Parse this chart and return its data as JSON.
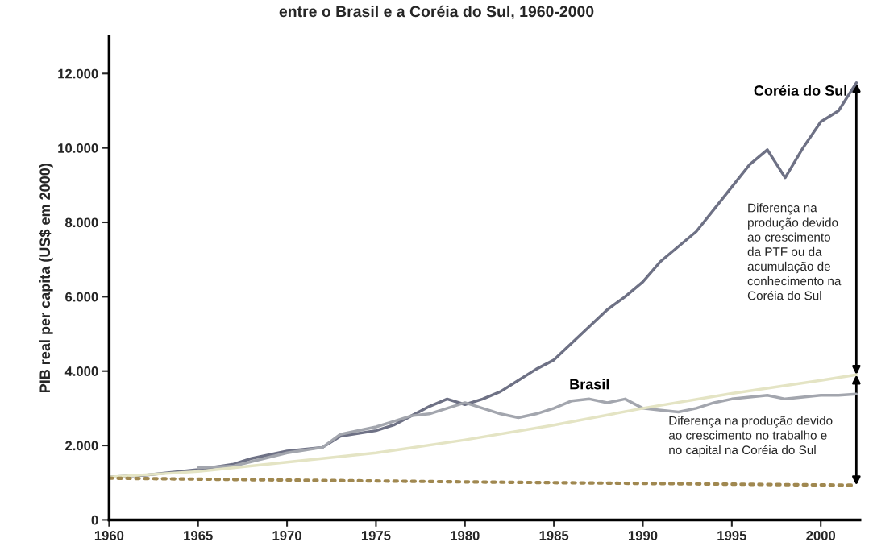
{
  "chart_data": {
    "type": "line",
    "title": "entre o Brasil e a Coréia do Sul, 1960-2000",
    "ylabel": "PIB real per capita (US$ em 2000)",
    "xlim": [
      1960,
      2002.2
    ],
    "ylim": [
      0,
      13000
    ],
    "xticks": [
      1960,
      1965,
      1970,
      1975,
      1980,
      1985,
      1990,
      1995,
      2000
    ],
    "yticks": [
      {
        "value": 0,
        "label": "0"
      },
      {
        "value": 2000,
        "label": "2.000"
      },
      {
        "value": 4000,
        "label": "4.000"
      },
      {
        "value": 6000,
        "label": "6.000"
      },
      {
        "value": 8000,
        "label": "8.000"
      },
      {
        "value": 10000,
        "label": "10.000"
      },
      {
        "value": 12000,
        "label": "12.000"
      }
    ],
    "grid": false,
    "legend": false,
    "series": [
      {
        "name": "Coréia do Sul",
        "color": "#6e7185",
        "line_style": "solid",
        "x": [
          1960,
          1962,
          1965,
          1967,
          1968,
          1970,
          1972,
          1973,
          1975,
          1976,
          1977,
          1978,
          1979,
          1980,
          1981,
          1982,
          1983,
          1984,
          1985,
          1986,
          1987,
          1988,
          1989,
          1990,
          1991,
          1992,
          1993,
          1994,
          1995,
          1996,
          1997,
          1998,
          1999,
          2000,
          2001,
          2002
        ],
        "values": [
          1150,
          1200,
          1350,
          1500,
          1650,
          1850,
          1950,
          2250,
          2400,
          2550,
          2800,
          3050,
          3250,
          3100,
          3250,
          3450,
          3750,
          4050,
          4300,
          4750,
          5200,
          5650,
          6000,
          6400,
          6950,
          7350,
          7750,
          8350,
          8950,
          9550,
          9950,
          9200,
          10000,
          10700,
          11000,
          11750
        ]
      },
      {
        "name": "Brasil",
        "color": "#a3a6ae",
        "line_style": "solid",
        "x": [
          1965,
          1967,
          1970,
          1972,
          1973,
          1975,
          1976,
          1977,
          1978,
          1979,
          1980,
          1981,
          1982,
          1983,
          1984,
          1985,
          1986,
          1987,
          1988,
          1989,
          1990,
          1991,
          1992,
          1993,
          1994,
          1995,
          1996,
          1997,
          1998,
          1999,
          2000,
          2001,
          2002
        ],
        "values": [
          1400,
          1450,
          1800,
          1950,
          2300,
          2500,
          2650,
          2800,
          2850,
          3000,
          3150,
          3000,
          2850,
          2750,
          2850,
          3000,
          3200,
          3250,
          3150,
          3250,
          3000,
          2950,
          2900,
          3000,
          3150,
          3250,
          3300,
          3350,
          3250,
          3300,
          3350,
          3350,
          3380
        ]
      },
      {
        "color": "#e4e4c4",
        "line_style": "solid",
        "x": [
          1960,
          1965,
          1970,
          1975,
          1980,
          1985,
          1990,
          1995,
          2000,
          2002
        ],
        "values": [
          1150,
          1300,
          1550,
          1800,
          2150,
          2550,
          3000,
          3400,
          3750,
          3900
        ]
      },
      {
        "color": "#a08850",
        "line_style": "dotted",
        "x": [
          1960,
          1980,
          2002
        ],
        "values": [
          1120,
          1020,
          930
        ]
      }
    ],
    "annotations": [
      "Diferença na\nprodução devido\nao crescimento\nda PTF ou da\nacumulação de\nconhecimento na\nCoréia do Sul",
      "Diferença na produção devido\nao crescimento no trabalho e\nno capital na Coréia do Sul"
    ]
  }
}
